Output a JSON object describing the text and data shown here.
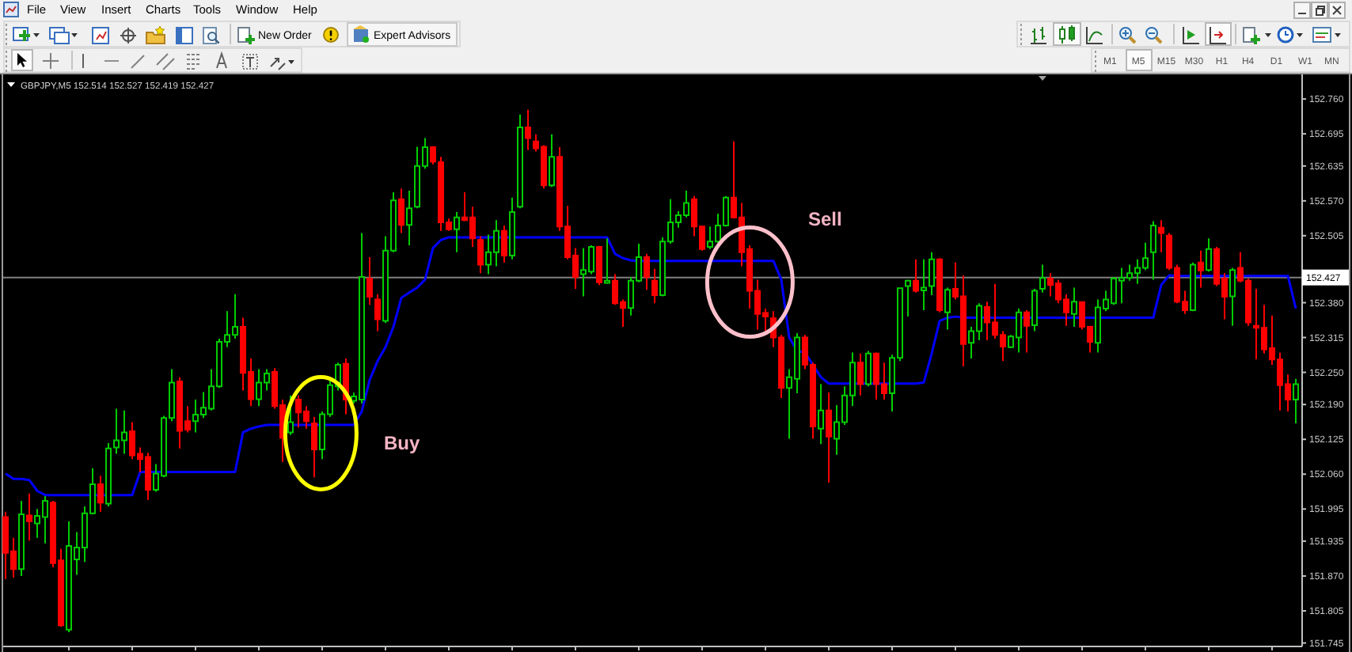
{
  "chart_data": {
    "type": "candlestick",
    "title": "GBPJPY,M5 152.514 152.527 152.419 152.427",
    "categories": [
      null,
      null,
      null,
      null,
      null,
      null,
      null,
      null,
      null,
      null,
      null,
      null,
      null,
      null,
      null,
      null,
      null,
      null,
      null,
      null,
      null,
      null,
      null,
      null,
      null,
      null,
      null,
      null,
      null,
      null,
      null,
      null,
      null,
      null,
      null,
      null,
      null,
      null,
      null,
      null,
      null,
      null,
      null,
      null,
      null,
      null,
      null,
      null,
      null,
      null,
      null,
      null,
      null,
      null,
      null,
      null,
      null,
      null,
      null,
      null,
      null,
      null,
      null,
      null,
      null,
      null,
      null,
      null,
      null,
      null,
      null,
      null,
      null,
      null,
      null,
      null,
      null,
      null,
      null,
      null,
      null,
      null,
      null,
      null,
      null,
      null,
      null,
      null,
      null,
      null,
      null,
      null,
      null,
      null,
      null,
      null,
      null,
      null,
      null,
      null,
      null,
      null,
      null,
      null,
      null,
      null,
      null,
      null,
      null,
      null,
      null,
      null,
      null,
      null,
      null,
      null,
      null,
      null,
      null,
      null,
      null,
      null,
      null,
      null,
      null,
      null,
      null,
      null,
      null,
      null,
      null,
      null,
      null,
      null,
      null,
      null,
      null,
      null,
      null,
      null,
      null,
      null,
      null,
      null,
      null,
      null,
      null,
      null,
      null,
      null,
      null,
      null,
      null,
      null,
      null,
      null,
      null,
      null,
      null,
      null,
      null,
      null,
      null,
      null
    ],
    "ohlc": [
      [
        151.98,
        151.99,
        151.864,
        151.913
      ],
      [
        151.916,
        151.941,
        151.867,
        151.883
      ],
      [
        151.883,
        152.01,
        151.87,
        151.985
      ],
      [
        151.983,
        152.024,
        151.936,
        151.972
      ],
      [
        151.968,
        151.995,
        151.941,
        151.982
      ],
      [
        151.98,
        152.019,
        151.931,
        152.01
      ],
      [
        152.007,
        152.01,
        151.886,
        151.894
      ],
      [
        151.899,
        151.921,
        151.775,
        151.778
      ],
      [
        151.77,
        151.972,
        151.765,
        151.926
      ],
      [
        151.901,
        151.952,
        151.872,
        151.923
      ],
      [
        151.923,
        152.0,
        151.896,
        151.987
      ],
      [
        151.987,
        152.071,
        151.985,
        152.041
      ],
      [
        152.041,
        152.057,
        151.99,
        152.007
      ],
      [
        152.005,
        152.118,
        152.0,
        152.108
      ],
      [
        152.11,
        152.182,
        152.098,
        152.123
      ],
      [
        152.123,
        152.179,
        152.098,
        152.138
      ],
      [
        152.14,
        152.157,
        152.088,
        152.095
      ],
      [
        152.098,
        152.11,
        152.064,
        152.088
      ],
      [
        152.092,
        152.1,
        152.012,
        152.031
      ],
      [
        152.031,
        152.079,
        152.027,
        152.061
      ],
      [
        152.057,
        152.169,
        152.054,
        152.165
      ],
      [
        152.165,
        152.256,
        152.159,
        152.231
      ],
      [
        152.233,
        152.241,
        152.108,
        152.141
      ],
      [
        152.159,
        152.187,
        152.138,
        152.143
      ],
      [
        152.159,
        152.199,
        152.138,
        152.171
      ],
      [
        152.171,
        152.213,
        152.165,
        152.184
      ],
      [
        152.182,
        152.256,
        152.179,
        152.224
      ],
      [
        152.224,
        152.313,
        152.221,
        152.307
      ],
      [
        152.307,
        152.364,
        152.297,
        152.32
      ],
      [
        152.32,
        152.396,
        152.313,
        152.335
      ],
      [
        152.335,
        152.352,
        152.216,
        152.249
      ],
      [
        152.251,
        152.276,
        152.187,
        152.2
      ],
      [
        152.2,
        152.256,
        152.187,
        152.231
      ],
      [
        152.231,
        152.256,
        152.216,
        152.248
      ],
      [
        152.251,
        152.258,
        152.182,
        152.187
      ],
      [
        152.189,
        152.199,
        152.083,
        152.128
      ],
      [
        152.138,
        152.207,
        152.133,
        152.157
      ],
      [
        152.199,
        152.207,
        152.147,
        152.175
      ],
      [
        152.177,
        152.187,
        152.145,
        152.159
      ],
      [
        152.155,
        152.167,
        152.054,
        152.106
      ],
      [
        152.106,
        152.177,
        152.088,
        152.172
      ],
      [
        152.172,
        152.236,
        152.167,
        152.226
      ],
      [
        152.224,
        152.268,
        152.216,
        152.264
      ],
      [
        152.266,
        152.276,
        152.172,
        152.199
      ],
      [
        152.197,
        152.212,
        152.192,
        152.205
      ],
      [
        152.199,
        152.51,
        152.192,
        152.428
      ],
      [
        152.425,
        152.465,
        152.376,
        152.391
      ],
      [
        152.386,
        152.396,
        152.327,
        152.349
      ],
      [
        152.346,
        152.504,
        152.342,
        152.477
      ],
      [
        152.477,
        152.586,
        152.474,
        152.571
      ],
      [
        152.573,
        152.593,
        152.51,
        152.525
      ],
      [
        152.525,
        152.589,
        152.487,
        152.556
      ],
      [
        152.559,
        152.671,
        152.556,
        152.635
      ],
      [
        152.635,
        152.687,
        152.63,
        152.67
      ],
      [
        152.67,
        152.672,
        152.638,
        152.643
      ],
      [
        152.642,
        152.652,
        152.514,
        152.53
      ],
      [
        152.53,
        152.537,
        152.514,
        152.517
      ],
      [
        152.517,
        152.549,
        152.474,
        152.539
      ],
      [
        152.539,
        152.586,
        152.532,
        152.534
      ],
      [
        152.539,
        152.559,
        152.484,
        152.5
      ],
      [
        152.497,
        152.504,
        152.435,
        152.451
      ],
      [
        152.451,
        152.507,
        152.433,
        152.474
      ],
      [
        152.474,
        152.534,
        152.448,
        152.514
      ],
      [
        152.514,
        152.524,
        152.455,
        152.468
      ],
      [
        152.468,
        152.576,
        152.461,
        152.549
      ],
      [
        152.559,
        152.731,
        152.556,
        152.707
      ],
      [
        152.707,
        152.74,
        152.665,
        152.687
      ],
      [
        152.681,
        152.694,
        152.662,
        152.668
      ],
      [
        152.671,
        152.674,
        152.593,
        152.599
      ],
      [
        152.599,
        152.694,
        152.596,
        152.652
      ],
      [
        152.652,
        152.67,
        152.514,
        152.522
      ],
      [
        152.522,
        152.561,
        152.461,
        152.465
      ],
      [
        152.468,
        152.482,
        152.406,
        152.428
      ],
      [
        152.433,
        152.482,
        152.392,
        152.441
      ],
      [
        152.438,
        152.487,
        152.433,
        152.484
      ],
      [
        152.484,
        152.486,
        152.413,
        152.418
      ],
      [
        152.417,
        152.5,
        152.415,
        152.421
      ],
      [
        152.421,
        152.433,
        152.376,
        152.379
      ],
      [
        152.381,
        152.386,
        152.335,
        152.37
      ],
      [
        152.37,
        152.428,
        152.356,
        152.421
      ],
      [
        152.421,
        152.49,
        152.418,
        152.465
      ],
      [
        152.465,
        152.471,
        152.404,
        152.428
      ],
      [
        152.421,
        152.443,
        152.379,
        152.394
      ],
      [
        152.394,
        152.502,
        152.392,
        152.494
      ],
      [
        152.494,
        152.573,
        152.49,
        152.53
      ],
      [
        152.53,
        152.551,
        152.52,
        152.543
      ],
      [
        152.543,
        152.589,
        152.539,
        152.566
      ],
      [
        152.573,
        152.579,
        152.504,
        152.522
      ],
      [
        152.522,
        152.524,
        152.477,
        152.48
      ],
      [
        152.484,
        152.522,
        152.48,
        152.494
      ],
      [
        152.494,
        152.546,
        152.492,
        152.524
      ],
      [
        152.524,
        152.579,
        152.522,
        152.576
      ],
      [
        152.576,
        152.681,
        152.537,
        152.539
      ],
      [
        152.539,
        152.566,
        152.448,
        152.474
      ],
      [
        152.48,
        152.487,
        152.369,
        152.402
      ],
      [
        152.402,
        152.423,
        152.33,
        152.359
      ],
      [
        152.361,
        152.369,
        152.325,
        152.354
      ],
      [
        152.351,
        152.364,
        152.297,
        152.315
      ],
      [
        152.315,
        152.32,
        152.202,
        152.221
      ],
      [
        152.221,
        152.256,
        152.126,
        152.241
      ],
      [
        152.238,
        152.323,
        152.211,
        152.315
      ],
      [
        152.315,
        152.32,
        152.256,
        152.264
      ],
      [
        152.264,
        152.268,
        152.126,
        152.149
      ],
      [
        152.145,
        152.228,
        152.116,
        152.179
      ],
      [
        152.179,
        152.212,
        152.044,
        152.13
      ],
      [
        152.126,
        152.189,
        152.096,
        152.157
      ],
      [
        152.157,
        152.224,
        152.152,
        152.207
      ],
      [
        152.207,
        152.287,
        152.187,
        152.268
      ],
      [
        152.268,
        152.285,
        152.207,
        152.228
      ],
      [
        152.228,
        152.29,
        152.224,
        152.285
      ],
      [
        152.285,
        152.287,
        152.199,
        152.228
      ],
      [
        152.228,
        152.268,
        152.199,
        152.211
      ],
      [
        152.211,
        152.283,
        152.177,
        152.277
      ],
      [
        152.277,
        152.408,
        152.271,
        152.407
      ],
      [
        152.411,
        152.423,
        152.354,
        152.421
      ],
      [
        152.421,
        152.461,
        152.399,
        152.402
      ],
      [
        152.403,
        152.461,
        152.366,
        152.408
      ],
      [
        152.411,
        152.474,
        152.394,
        152.461
      ],
      [
        152.461,
        152.463,
        152.362,
        152.366
      ],
      [
        152.362,
        152.408,
        152.33,
        152.404
      ],
      [
        152.406,
        152.455,
        152.386,
        152.391
      ],
      [
        152.392,
        152.431,
        152.261,
        152.303
      ],
      [
        152.305,
        152.335,
        152.276,
        152.327
      ],
      [
        152.327,
        152.379,
        152.31,
        152.374
      ],
      [
        152.372,
        152.382,
        152.31,
        152.343
      ],
      [
        152.343,
        152.415,
        152.313,
        152.32
      ],
      [
        152.32,
        152.327,
        152.271,
        152.298
      ],
      [
        152.297,
        152.32,
        152.295,
        152.317
      ],
      [
        152.315,
        152.369,
        152.287,
        152.362
      ],
      [
        152.362,
        152.366,
        152.287,
        152.337
      ],
      [
        152.338,
        152.406,
        152.327,
        152.402
      ],
      [
        152.406,
        152.451,
        152.399,
        152.426
      ],
      [
        152.425,
        152.435,
        152.392,
        152.413
      ],
      [
        152.416,
        152.423,
        152.379,
        152.386
      ],
      [
        152.386,
        152.396,
        152.337,
        152.362
      ],
      [
        152.359,
        152.408,
        152.335,
        152.382
      ],
      [
        152.381,
        152.382,
        152.33,
        152.335
      ],
      [
        152.335,
        152.337,
        152.287,
        152.307
      ],
      [
        152.305,
        152.386,
        152.287,
        152.371
      ],
      [
        152.369,
        152.402,
        152.364,
        152.386
      ],
      [
        152.379,
        152.428,
        152.376,
        152.425
      ],
      [
        152.421,
        152.445,
        152.379,
        152.426
      ],
      [
        152.426,
        152.451,
        152.421,
        152.435
      ],
      [
        152.435,
        152.461,
        152.415,
        152.445
      ],
      [
        152.445,
        152.492,
        152.441,
        152.463
      ],
      [
        152.474,
        152.532,
        152.423,
        152.524
      ],
      [
        152.52,
        152.534,
        152.474,
        152.51
      ],
      [
        152.505,
        152.51,
        152.441,
        152.445
      ],
      [
        152.445,
        152.451,
        152.379,
        152.382
      ],
      [
        152.382,
        152.402,
        152.359,
        152.366
      ],
      [
        152.366,
        152.455,
        152.364,
        152.451
      ],
      [
        152.455,
        152.477,
        152.408,
        152.44
      ],
      [
        152.441,
        152.5,
        152.438,
        152.48
      ],
      [
        152.48,
        152.484,
        152.411,
        152.415
      ],
      [
        152.425,
        152.435,
        152.349,
        152.391
      ],
      [
        152.392,
        152.445,
        152.337,
        152.441
      ],
      [
        152.445,
        152.474,
        152.418,
        152.421
      ],
      [
        152.421,
        152.425,
        152.337,
        152.343
      ],
      [
        152.337,
        152.406,
        152.274,
        152.333
      ],
      [
        152.333,
        152.376,
        152.285,
        152.293
      ],
      [
        152.295,
        152.356,
        152.264,
        152.274
      ],
      [
        152.274,
        152.287,
        152.179,
        152.226
      ],
      [
        152.228,
        152.246,
        152.177,
        152.199
      ],
      [
        152.199,
        152.238,
        152.155,
        152.228
      ]
    ],
    "colors": [
      "#ff0000",
      "#ff0000",
      "#00cc00",
      "#ff0000",
      "#00cc00",
      "#00cc00",
      "#ff0000",
      "#ff0000",
      "#00cc00",
      "#00cc00",
      "#00cc00",
      "#00cc00",
      "#ff0000",
      "#00cc00",
      "#00cc00",
      "#00cc00",
      "#ff0000",
      "#ff0000",
      "#ff0000",
      "#00cc00",
      "#00cc00",
      "#00cc00",
      "#ff0000",
      "#ff0000",
      "#00cc00",
      "#00cc00",
      "#00cc00",
      "#00cc00",
      "#00cc00",
      "#00cc00",
      "#ff0000",
      "#ff0000",
      "#00cc00",
      "#00cc00",
      "#ff0000",
      "#ff0000",
      "#00cc00",
      "#ff0000",
      "#ff0000",
      "#ff0000",
      "#00cc00",
      "#00cc00",
      "#00cc00",
      "#ff0000",
      "#00cc00",
      "#00cc00",
      "#ff0000",
      "#ff0000",
      "#00cc00",
      "#00cc00",
      "#ff0000",
      "#00cc00",
      "#00cc00",
      "#00cc00",
      "#ff0000",
      "#ff0000",
      "#ff0000",
      "#00cc00",
      "#ff0000",
      "#ff0000",
      "#ff0000",
      "#00cc00",
      "#00cc00",
      "#ff0000",
      "#00cc00",
      "#00cc00",
      "#ff0000",
      "#ff0000",
      "#ff0000",
      "#00cc00",
      "#ff0000",
      "#ff0000",
      "#ff0000",
      "#00cc00",
      "#00cc00",
      "#ff0000",
      "#00cc00",
      "#ff0000",
      "#ff0000",
      "#00cc00",
      "#00cc00",
      "#ff0000",
      "#ff0000",
      "#00cc00",
      "#00cc00",
      "#00cc00",
      "#00cc00",
      "#ff0000",
      "#ff0000",
      "#00cc00",
      "#00cc00",
      "#00cc00",
      "#ff0000",
      "#ff0000",
      "#ff0000",
      "#ff0000",
      "#ff0000",
      "#ff0000",
      "#ff0000",
      "#00cc00",
      "#00cc00",
      "#ff0000",
      "#ff0000",
      "#00cc00",
      "#ff0000",
      "#00cc00",
      "#00cc00",
      "#00cc00",
      "#ff0000",
      "#00cc00",
      "#ff0000",
      "#ff0000",
      "#00cc00",
      "#00cc00",
      "#00cc00",
      "#ff0000",
      "#00cc00",
      "#00cc00",
      "#ff0000",
      "#00cc00",
      "#ff0000",
      "#ff0000",
      "#00cc00",
      "#00cc00",
      "#ff0000",
      "#ff0000",
      "#ff0000",
      "#00cc00",
      "#00cc00",
      "#ff0000",
      "#00cc00",
      "#00cc00",
      "#ff0000",
      "#ff0000",
      "#ff0000",
      "#00cc00",
      "#ff0000",
      "#ff0000",
      "#00cc00",
      "#00cc00",
      "#00cc00",
      "#00cc00",
      "#00cc00",
      "#00cc00",
      "#00cc00",
      "#00cc00",
      "#ff0000",
      "#ff0000",
      "#ff0000",
      "#ff0000",
      "#00cc00",
      "#ff0000",
      "#00cc00",
      "#ff0000",
      "#ff0000",
      "#00cc00",
      "#ff0000",
      "#ff0000",
      "#ff0000",
      "#ff0000",
      "#ff0000",
      "#ff0000",
      "#ff0000",
      "#00cc00"
    ],
    "series": [
      {
        "type": "line",
        "color": "#0000ff",
        "values": [
          152.061,
          152.051,
          152.051,
          152.049,
          152.029,
          152.021,
          152.021,
          152.021,
          152.021,
          152.021,
          152.021,
          152.021,
          152.021,
          152.021,
          152.021,
          152.021,
          152.021,
          152.064,
          152.064,
          152.064,
          152.064,
          152.064,
          152.064,
          152.064,
          152.064,
          152.064,
          152.064,
          152.064,
          152.064,
          152.064,
          152.138,
          152.145,
          152.149,
          152.152,
          152.152,
          152.152,
          152.152,
          152.152,
          152.152,
          152.152,
          152.152,
          152.152,
          152.152,
          152.152,
          152.152,
          152.177,
          152.236,
          152.271,
          152.297,
          152.335,
          152.389,
          152.399,
          152.408,
          152.423,
          152.482,
          152.497,
          152.502,
          152.502,
          152.502,
          152.502,
          152.502,
          152.502,
          152.502,
          152.502,
          152.502,
          152.502,
          152.502,
          152.502,
          152.502,
          152.502,
          152.502,
          152.502,
          152.502,
          152.502,
          152.502,
          152.502,
          152.502,
          152.471,
          152.463,
          152.459,
          152.458,
          152.458,
          152.458,
          152.458,
          152.458,
          152.458,
          152.458,
          152.458,
          152.458,
          152.458,
          152.458,
          152.458,
          152.458,
          152.458,
          152.458,
          152.458,
          152.458,
          152.458,
          152.423,
          152.315,
          152.29,
          152.287,
          152.264,
          152.241,
          152.229,
          152.229,
          152.229,
          152.229,
          152.229,
          152.229,
          152.229,
          152.229,
          152.229,
          152.229,
          152.229,
          152.229,
          152.231,
          152.285,
          152.346,
          152.352,
          152.354,
          152.352,
          152.352,
          152.352,
          152.352,
          152.352,
          152.352,
          152.352,
          152.352,
          152.352,
          152.352,
          152.352,
          152.352,
          152.352,
          152.352,
          152.352,
          152.352,
          152.352,
          152.352,
          152.352,
          152.352,
          152.352,
          152.352,
          152.352,
          152.352,
          152.352,
          152.413,
          152.431,
          152.43,
          152.43,
          152.43,
          152.43,
          152.43,
          152.43,
          152.43,
          152.43,
          152.43,
          152.43,
          152.43,
          152.43,
          152.43,
          152.43,
          152.43,
          152.369
        ]
      }
    ],
    "ylim": [
      151.74,
      152.803
    ],
    "yticks": [
      {
        "value": 152.76,
        "label": "152.760"
      },
      152.695,
      152.635,
      {
        "value": 152.57,
        "label": "152.570"
      },
      152.505,
      {
        "value": 152.44,
        "label": null
      },
      {
        "value": 152.38,
        "label": "152.380"
      },
      152.315,
      {
        "value": 152.25,
        "label": "152.250"
      },
      {
        "value": 152.19,
        "label": "152.190"
      },
      152.125,
      {
        "value": 152.06,
        "label": "152.060"
      },
      151.995,
      151.935,
      {
        "value": 151.87,
        "label": "151.870"
      },
      151.805,
      151.745
    ],
    "tick_labels": "y",
    "ref_lines": [
      {
        "axis": "y",
        "value": 152.427,
        "label": "152.427",
        "color": "#808080"
      }
    ],
    "annotations": [
      "File",
      "View",
      "Insert",
      "Charts",
      "Tools",
      "Window",
      "Help",
      "New Order",
      "Expert Advisors",
      "M1",
      "M5",
      "M15",
      "M30",
      "H1",
      "H4",
      "D1",
      "W1",
      "MN",
      "Buy",
      "Sell"
    ]
  }
}
